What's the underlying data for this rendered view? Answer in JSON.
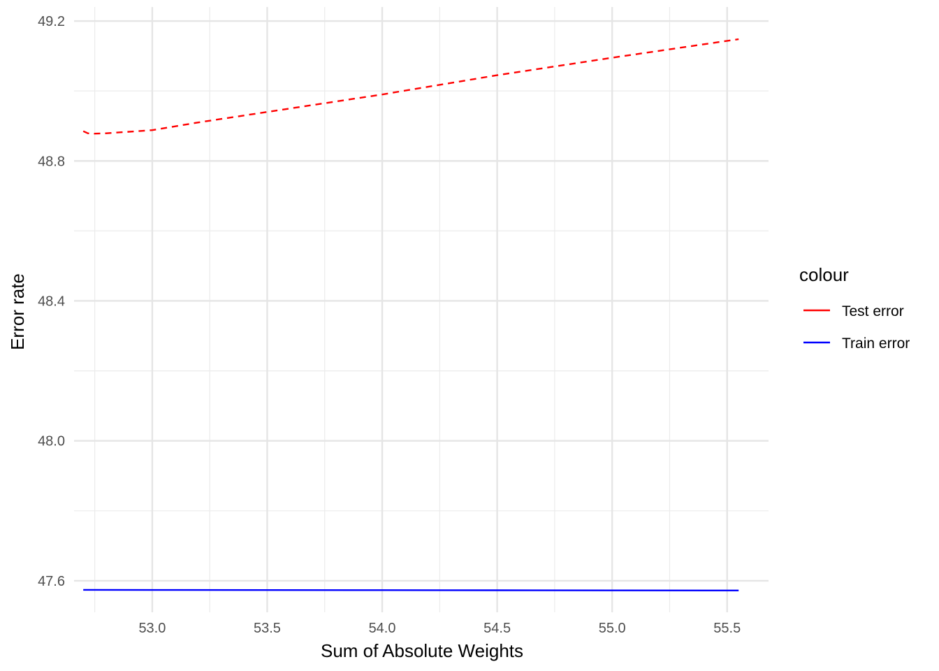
{
  "chart_data": {
    "type": "line",
    "title": "",
    "xlabel": "Sum of Absolute Weights",
    "ylabel": "Error rate",
    "xlim": [
      52.66,
      55.68
    ],
    "ylim": [
      47.51,
      49.24
    ],
    "x_ticks": [
      53.0,
      53.5,
      54.0,
      54.5,
      55.0,
      55.5
    ],
    "x_tick_labels": [
      "53.0",
      "53.5",
      "54.0",
      "54.5",
      "55.0",
      "55.5"
    ],
    "y_ticks": [
      47.6,
      48.0,
      48.4,
      48.8,
      49.2
    ],
    "y_tick_labels": [
      "47.6",
      "48.0",
      "48.4",
      "48.8",
      "49.2"
    ],
    "grid": true,
    "legend": {
      "title": "colour",
      "position": "right",
      "entries": [
        "Test error",
        "Train error"
      ]
    },
    "series": [
      {
        "name": "Test error",
        "color": "#ff0000",
        "dash": "dashed",
        "x": [
          52.7,
          52.72,
          52.75,
          52.8,
          53.0,
          53.2,
          53.5,
          54.0,
          54.5,
          55.0,
          55.55
        ],
        "y": [
          48.885,
          48.879,
          48.878,
          48.879,
          48.888,
          48.91,
          48.94,
          48.99,
          49.045,
          49.095,
          49.148
        ]
      },
      {
        "name": "Train error",
        "color": "#0000ff",
        "dash": "solid",
        "x": [
          52.7,
          53.0,
          53.5,
          54.0,
          54.5,
          55.0,
          55.55
        ],
        "y": [
          47.574,
          47.5738,
          47.5735,
          47.5732,
          47.5729,
          47.5726,
          47.5722
        ]
      }
    ]
  }
}
